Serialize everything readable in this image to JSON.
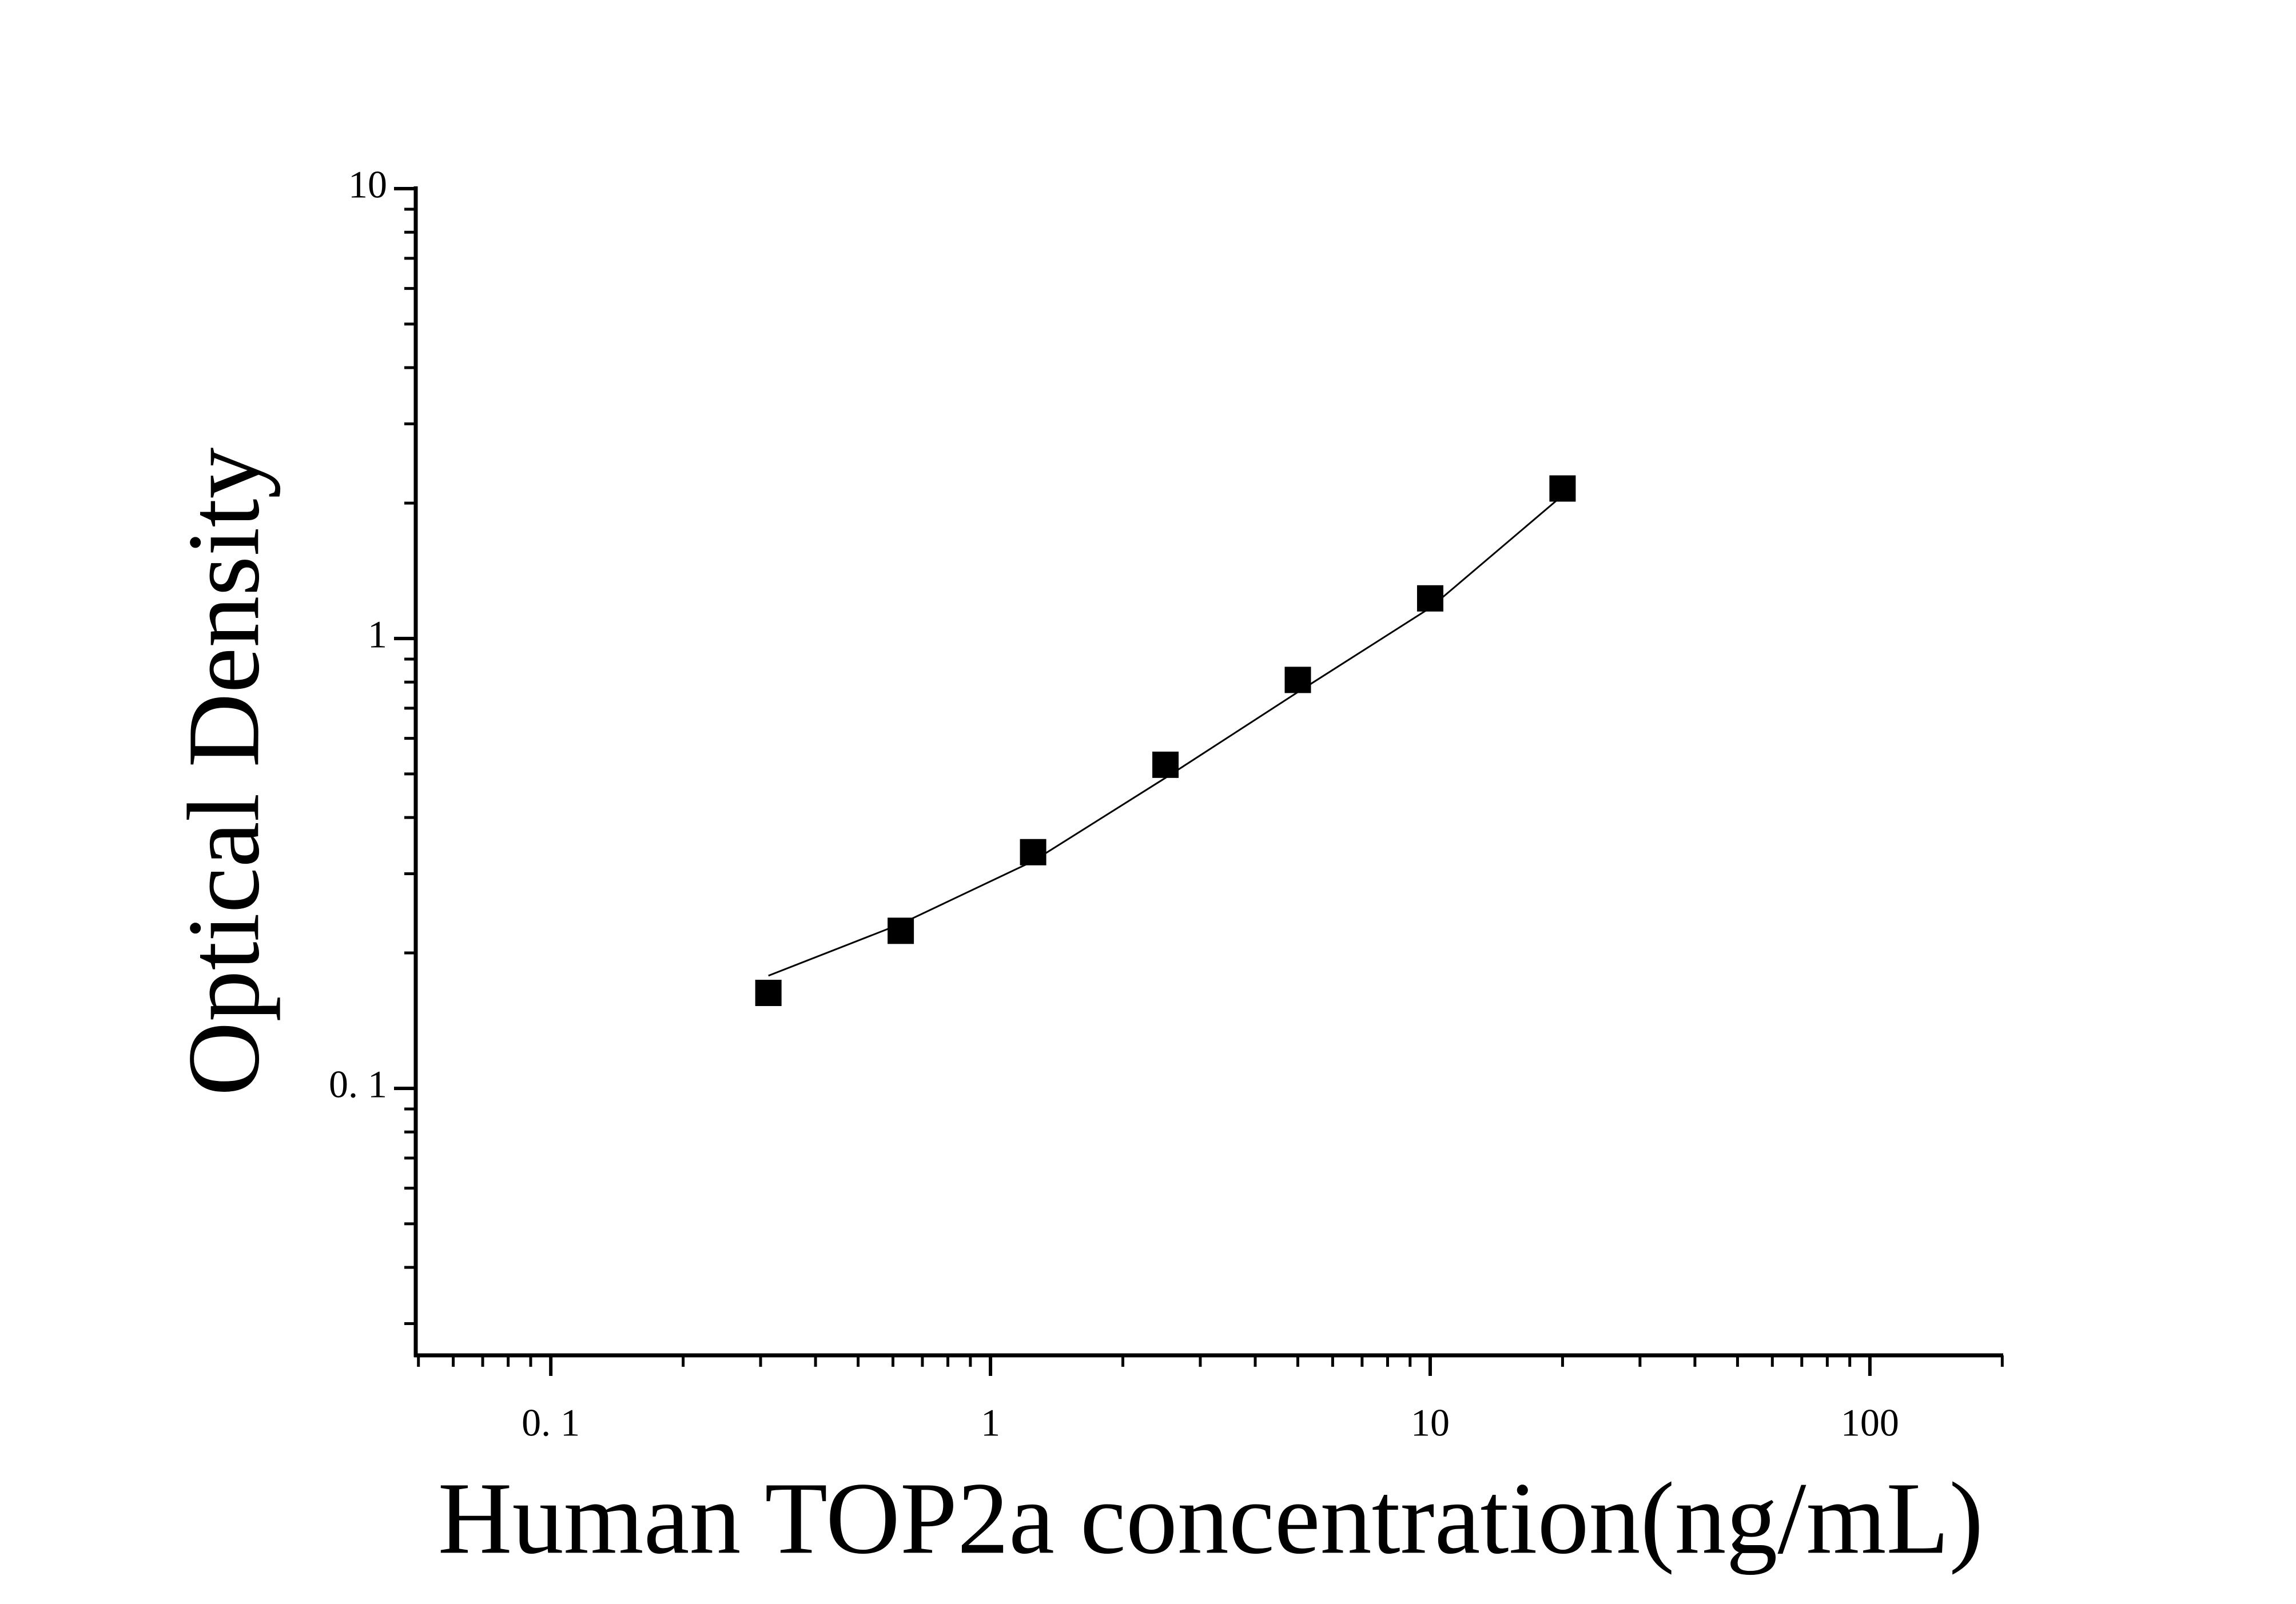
{
  "chart_data": {
    "type": "scatter",
    "x_label": "Human TOP2a concentration(ng/mL)",
    "y_label": "Optical Density",
    "x_scale": "log",
    "y_scale": "log",
    "xlim": [
      0.0493,
      201
    ],
    "ylim": [
      0.0255,
      10
    ],
    "xticks": [
      {
        "value": 0.1,
        "label": "0. 1"
      },
      1,
      10,
      100
    ],
    "yticks": [
      {
        "value": 0.1,
        "label": "0. 1"
      },
      1,
      10
    ],
    "marker": "square",
    "color": "#000000",
    "x": [
      0.3125,
      0.625,
      1.25,
      2.5,
      5,
      10,
      20
    ],
    "values": [
      0.163,
      0.224,
      0.335,
      0.524,
      0.809,
      1.228,
      2.155
    ],
    "fit": {
      "x": [
        0.3125,
        0.625,
        1.25,
        2.5,
        5,
        10,
        20
      ],
      "values": [
        0.178,
        0.232,
        0.32,
        0.49,
        0.76,
        1.17,
        2.08
      ]
    }
  }
}
